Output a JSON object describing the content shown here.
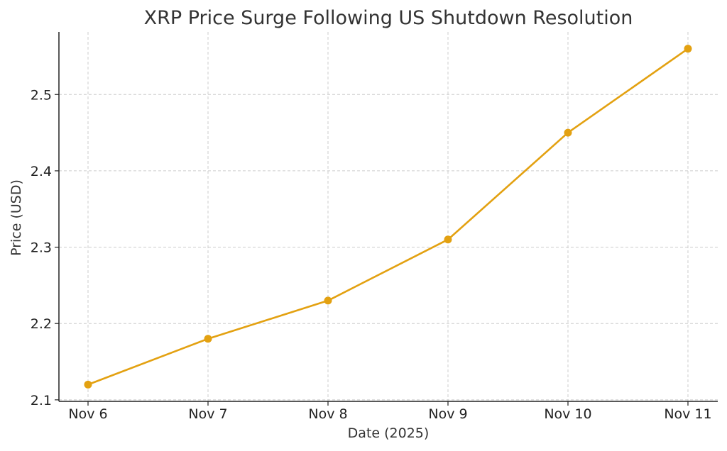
{
  "chart_data": {
    "type": "line",
    "title": "XRP Price Surge Following US Shutdown Resolution",
    "xlabel": "Date (2025)",
    "ylabel": "Price (USD)",
    "categories": [
      "Nov 6",
      "Nov 7",
      "Nov 8",
      "Nov 9",
      "Nov 10",
      "Nov 11"
    ],
    "series": [
      {
        "name": "XRP",
        "values": [
          2.12,
          2.18,
          2.23,
          2.31,
          2.45,
          2.56
        ]
      }
    ],
    "yticks": [
      2.1,
      2.2,
      2.3,
      2.4,
      2.5
    ],
    "ytick_labels": [
      "2.1",
      "2.2",
      "2.3",
      "2.4",
      "2.5"
    ],
    "ylim": [
      2.098,
      2.582
    ],
    "grid": true,
    "colors": {
      "line": "#e3a111",
      "grid": "#cccccc",
      "axis": "#222222"
    }
  }
}
